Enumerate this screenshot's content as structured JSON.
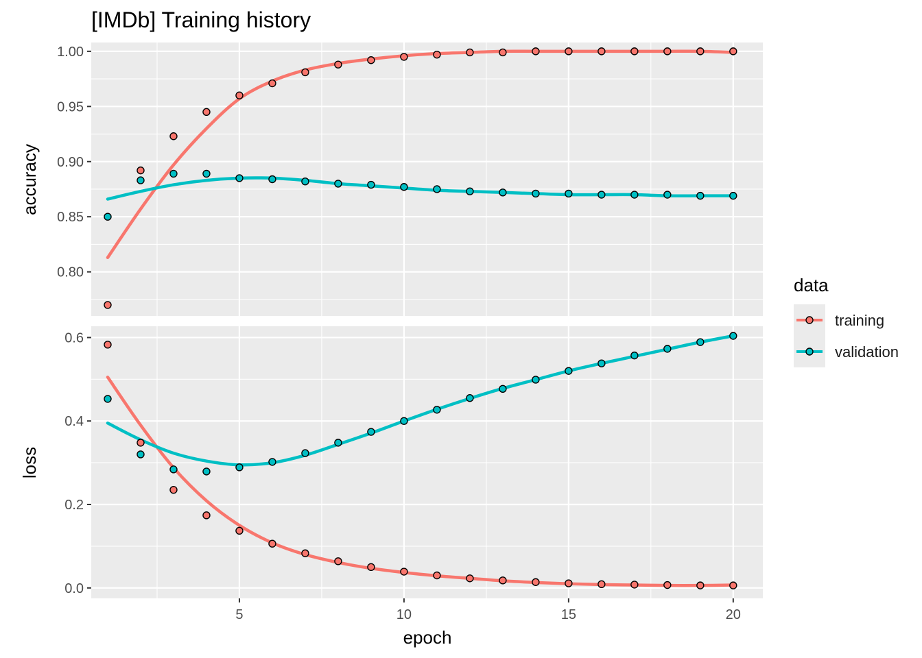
{
  "chart_data": {
    "type": "line",
    "title": "[IMDb] Training history",
    "xlabel": "epoch",
    "xlim": [
      0.5,
      20.9
    ],
    "x_ticks": [
      5,
      10,
      15,
      20
    ],
    "x": [
      1,
      2,
      3,
      4,
      5,
      6,
      7,
      8,
      9,
      10,
      11,
      12,
      13,
      14,
      15,
      16,
      17,
      18,
      19,
      20
    ],
    "legend": {
      "title": "data",
      "position": "right",
      "entries": [
        "training",
        "validation"
      ]
    },
    "series_colors": {
      "training": "#F8766D",
      "validation": "#00BFC4"
    },
    "panels": [
      {
        "ylabel": "accuracy",
        "ylim": [
          0.76,
          1.008
        ],
        "y_ticks": [
          0.8,
          0.85,
          0.9,
          0.95,
          1.0
        ],
        "y_tick_labels": [
          "0.80",
          "0.85",
          "0.90",
          "0.95",
          "1.00"
        ],
        "series": [
          {
            "name": "training",
            "values": [
              0.77,
              0.892,
              0.923,
              0.945,
              0.96,
              0.971,
              0.981,
              0.988,
              0.992,
              0.995,
              0.997,
              0.999,
              0.999,
              1.0,
              1.0,
              1.0,
              1.0,
              1.0,
              1.0,
              1.0
            ],
            "smooth": [
              0.813,
              0.857,
              0.897,
              0.93,
              0.957,
              0.973,
              0.983,
              0.989,
              0.993,
              0.996,
              0.998,
              0.999,
              1.0,
              1.0,
              1.0,
              1.0,
              1.0,
              1.0,
              1.0,
              0.999
            ]
          },
          {
            "name": "validation",
            "values": [
              0.85,
              0.883,
              0.889,
              0.889,
              0.885,
              0.884,
              0.882,
              0.88,
              0.879,
              0.877,
              0.875,
              0.873,
              0.872,
              0.871,
              0.871,
              0.87,
              0.87,
              0.87,
              0.869,
              0.869
            ],
            "smooth": [
              0.866,
              0.873,
              0.879,
              0.883,
              0.885,
              0.885,
              0.883,
              0.88,
              0.878,
              0.876,
              0.874,
              0.873,
              0.872,
              0.871,
              0.87,
              0.87,
              0.87,
              0.869,
              0.869,
              0.869
            ]
          }
        ]
      },
      {
        "ylabel": "loss",
        "ylim": [
          -0.025,
          0.627
        ],
        "y_ticks": [
          0.0,
          0.2,
          0.4,
          0.6
        ],
        "y_tick_labels": [
          "0.0",
          "0.2",
          "0.4",
          "0.6"
        ],
        "series": [
          {
            "name": "training",
            "values": [
              0.583,
              0.348,
              0.235,
              0.174,
              0.137,
              0.106,
              0.083,
              0.064,
              0.05,
              0.039,
              0.03,
              0.023,
              0.018,
              0.014,
              0.011,
              0.009,
              0.008,
              0.007,
              0.006,
              0.006
            ],
            "smooth": [
              0.505,
              0.39,
              0.288,
              0.209,
              0.15,
              0.108,
              0.08,
              0.061,
              0.047,
              0.037,
              0.029,
              0.023,
              0.017,
              0.013,
              0.01,
              0.008,
              0.007,
              0.006,
              0.006,
              0.007
            ]
          },
          {
            "name": "validation",
            "values": [
              0.453,
              0.32,
              0.284,
              0.279,
              0.289,
              0.302,
              0.323,
              0.348,
              0.374,
              0.4,
              0.427,
              0.455,
              0.477,
              0.499,
              0.52,
              0.538,
              0.557,
              0.573,
              0.589,
              0.604
            ],
            "smooth": [
              0.395,
              0.355,
              0.323,
              0.304,
              0.295,
              0.3,
              0.318,
              0.344,
              0.371,
              0.4,
              0.428,
              0.454,
              0.478,
              0.499,
              0.52,
              0.538,
              0.555,
              0.572,
              0.589,
              0.604
            ]
          }
        ]
      }
    ]
  }
}
